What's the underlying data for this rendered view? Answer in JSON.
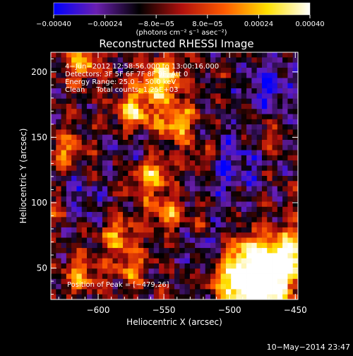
{
  "chart_data": {
    "type": "heatmap",
    "title": "Reconstructed RHESSI Image",
    "xlabel": "Heliocentric X (arcsec)",
    "ylabel": "Heliocentric Y (arcsec)",
    "xlim": [
      -636,
      -448
    ],
    "ylim": [
      26,
      215
    ],
    "x_ticks": [
      -600,
      -550,
      -500,
      -450
    ],
    "x_tick_labels": [
      "−600",
      "−550",
      "−500",
      "−450"
    ],
    "y_ticks": [
      50,
      100,
      150,
      200
    ],
    "y_tick_labels": [
      "50",
      "100",
      "150",
      "200"
    ],
    "colorbar": {
      "range": [
        -0.0004,
        0.0004
      ],
      "ticks": [
        -0.0004,
        -0.00024,
        -8e-05,
        8e-05,
        0.00024,
        0.0004
      ],
      "tick_labels": [
        "−0.00040",
        "−0.00024",
        "−8.0e−05",
        "8.0e−05",
        "0.00024",
        "0.00040"
      ],
      "units": "(photons cm⁻² s⁻¹ asec⁻²)",
      "colormap": [
        "#0000ff",
        "#6a1fb0",
        "#000000",
        "#b0100d",
        "#ff5a00",
        "#ffe000",
        "#ffffff"
      ]
    },
    "annotations": [
      "4−Jun−2012 12:58:56.000 to 13:00:16.000",
      "Detectors: 3F 5F 6F 7F 8F 9F, Att 0",
      "Energy Range: 25.0 − 50.0 keV",
      "Clean     Total counts: 1.25E+03"
    ],
    "peak_label": "Position of Peak = [−479,26]",
    "peak": [
      -479,
      26
    ],
    "sources": [
      {
        "x": -478,
        "y": 35,
        "amp": 1.7,
        "r": 13
      },
      {
        "x": -457,
        "y": 57,
        "amp": 1.35,
        "r": 15
      },
      {
        "x": -488,
        "y": 60,
        "amp": 0.9,
        "r": 11
      },
      {
        "x": -500,
        "y": 40,
        "amp": 0.8,
        "r": 10
      },
      {
        "x": -552,
        "y": 193,
        "amp": 1.1,
        "r": 12
      },
      {
        "x": -573,
        "y": 170,
        "amp": 0.9,
        "r": 10
      },
      {
        "x": -540,
        "y": 160,
        "amp": 0.85,
        "r": 10
      },
      {
        "x": -611,
        "y": 207,
        "amp": 0.75,
        "r": 10
      },
      {
        "x": -625,
        "y": 140,
        "amp": 0.65,
        "r": 9
      },
      {
        "x": -560,
        "y": 120,
        "amp": 0.85,
        "r": 10
      },
      {
        "x": -548,
        "y": 92,
        "amp": 0.75,
        "r": 9
      },
      {
        "x": -585,
        "y": 75,
        "amp": 0.7,
        "r": 10
      },
      {
        "x": -612,
        "y": 45,
        "amp": 0.7,
        "r": 10
      },
      {
        "x": -630,
        "y": 95,
        "amp": 0.55,
        "r": 8
      },
      {
        "x": -520,
        "y": 135,
        "amp": 0.55,
        "r": 9
      },
      {
        "x": -575,
        "y": 50,
        "amp": 0.6,
        "r": 9
      },
      {
        "x": -525,
        "y": 85,
        "amp": 0.45,
        "r": 8
      },
      {
        "x": -470,
        "y": 150,
        "amp": 0.35,
        "r": 8
      }
    ],
    "negative_regions": [
      {
        "x": -470,
        "y": 190,
        "amp": 0.55,
        "r": 15
      },
      {
        "x": -500,
        "y": 130,
        "amp": 0.5,
        "r": 18
      },
      {
        "x": -615,
        "y": 100,
        "amp": 0.45,
        "r": 14
      },
      {
        "x": -520,
        "y": 75,
        "amp": 0.35,
        "r": 14
      },
      {
        "x": -575,
        "y": 140,
        "amp": 0.3,
        "r": 10
      }
    ]
  },
  "timestamp": "10−May−2014 23:47"
}
